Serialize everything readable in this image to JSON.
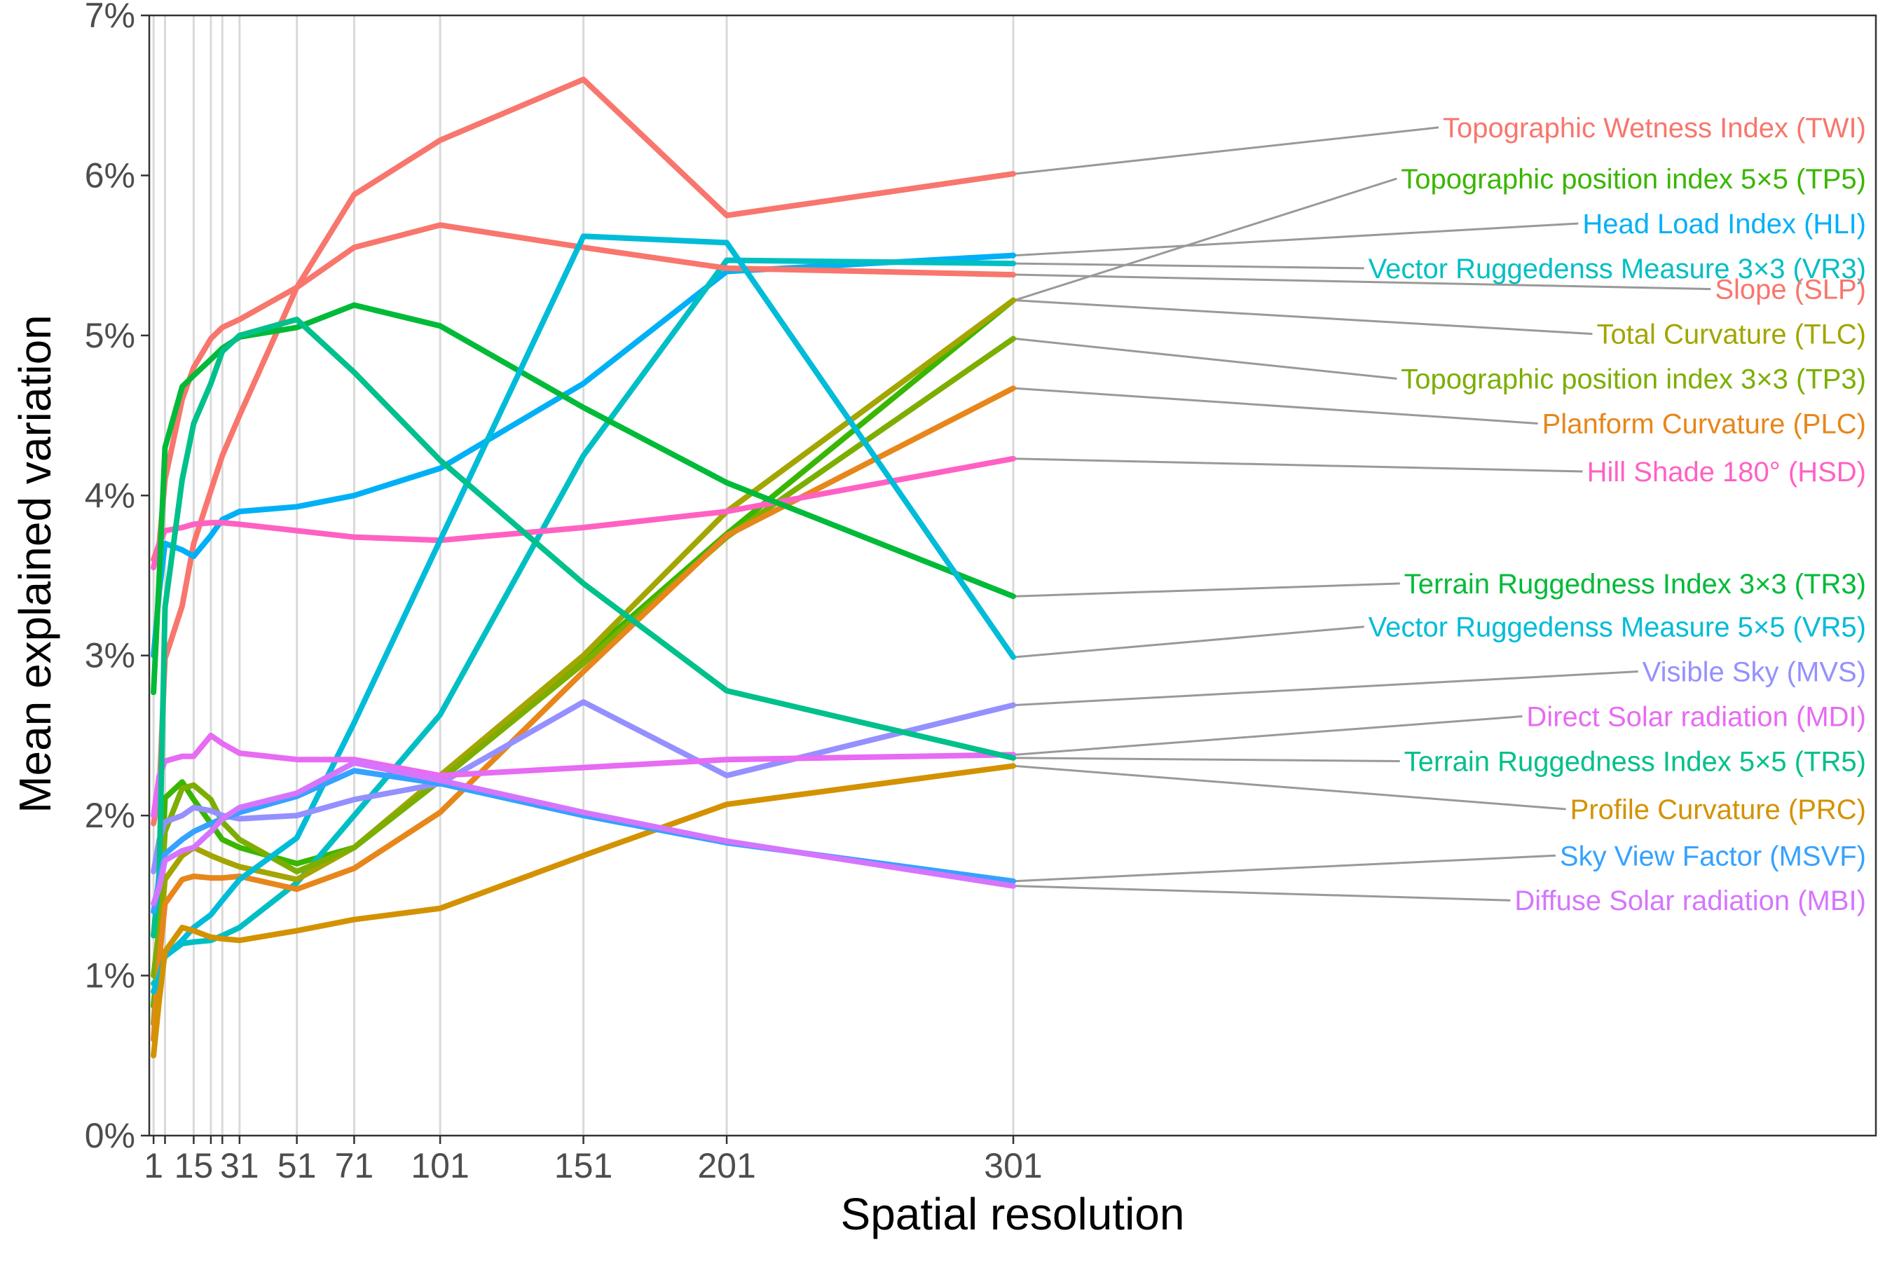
{
  "chart_data": {
    "type": "line",
    "title": "",
    "xlabel": "Spatial resolution",
    "ylabel": "Mean explained variation",
    "x": [
      1,
      3,
      5,
      11,
      15,
      21,
      25,
      31,
      51,
      71,
      101,
      151,
      201,
      301
    ],
    "x_ticks": [
      1,
      5,
      15,
      21,
      25,
      31,
      51,
      71,
      101,
      151,
      201,
      301
    ],
    "x_tick_labels": [
      {
        "value": 1,
        "label": "1"
      },
      {
        "value": 15,
        "label": "15"
      },
      {
        "value": 31,
        "label": "31"
      },
      {
        "value": 51,
        "label": "51"
      },
      {
        "value": 71,
        "label": "71"
      },
      {
        "value": 101,
        "label": "101"
      },
      {
        "value": 151,
        "label": "151"
      },
      {
        "value": 201,
        "label": "201"
      },
      {
        "value": 301,
        "label": "301"
      }
    ],
    "xlim": [
      -0.5,
      602
    ],
    "ylim": [
      0,
      0.07
    ],
    "y_ticks": [
      0,
      0.01,
      0.02,
      0.03,
      0.04,
      0.05,
      0.06,
      0.07
    ],
    "y_tick_labels": [
      "0%",
      "1%",
      "2%",
      "3%",
      "4%",
      "5%",
      "6%",
      "7%"
    ],
    "grid": "vertical at x ticks",
    "legend": "direct labels at right",
    "series": [
      {
        "name": "Topographic Wetness Index (TWI)",
        "color": "#F8766D",
        "label_y": 0.063,
        "values": [
          0.0195,
          0.0215,
          0.0298,
          0.0331,
          0.037,
          0.0403,
          0.0425,
          0.045,
          0.053,
          0.0588,
          0.0622,
          0.066,
          0.0575,
          0.0601
        ]
      },
      {
        "name": "Topographic position index 5×5 (TP5)",
        "color": "#39B600",
        "label_y": 0.0598,
        "values": [
          0.0081,
          0.012,
          0.0211,
          0.0221,
          0.021,
          0.0195,
          0.0185,
          0.018,
          0.017,
          0.018,
          0.0222,
          0.0298,
          0.0376,
          0.0522
        ]
      },
      {
        "name": "Head Load Index (HLI)",
        "color": "#00B0F6",
        "label_y": 0.057,
        "values": [
          0.03,
          0.034,
          0.037,
          0.0366,
          0.0362,
          0.0375,
          0.0385,
          0.039,
          0.0393,
          0.04,
          0.0417,
          0.047,
          0.054,
          0.055
        ]
      },
      {
        "name": "Vector Ruggedenss Measure 3×3 (VR3)",
        "color": "#00BFC4",
        "label_y": 0.0542,
        "values": [
          0.0095,
          0.01,
          0.0112,
          0.012,
          0.0121,
          0.0122,
          0.0125,
          0.013,
          0.0158,
          0.02,
          0.0263,
          0.0425,
          0.0547,
          0.0545
        ]
      },
      {
        "name": "Slope (SLP)",
        "color": "#F8766D",
        "label_y": 0.0529,
        "values": [
          0.036,
          0.037,
          0.041,
          0.046,
          0.048,
          0.0498,
          0.0505,
          0.051,
          0.053,
          0.0555,
          0.0569,
          0.0555,
          0.0542,
          0.0538
        ]
      },
      {
        "name": "Total Curvature (TLC)",
        "color": "#A3A500",
        "label_y": 0.0501,
        "values": [
          0.007,
          0.012,
          0.016,
          0.0175,
          0.018,
          0.0175,
          0.0172,
          0.0168,
          0.016,
          0.018,
          0.0225,
          0.03,
          0.039,
          0.0522
        ]
      },
      {
        "name": "Topographic position index 3×3 (TP3)",
        "color": "#7CAE00",
        "label_y": 0.0473,
        "values": [
          0.01,
          0.013,
          0.019,
          0.0217,
          0.0219,
          0.021,
          0.0196,
          0.0185,
          0.0165,
          0.018,
          0.0222,
          0.0295,
          0.0374,
          0.0498
        ]
      },
      {
        "name": "Planform Curvature (PLC)",
        "color": "#E7861A",
        "label_y": 0.0445,
        "values": [
          0.006,
          0.011,
          0.0145,
          0.016,
          0.0162,
          0.0161,
          0.0161,
          0.0162,
          0.0154,
          0.0167,
          0.0202,
          0.029,
          0.0375,
          0.0467
        ]
      },
      {
        "name": "Hill Shade 180° (HSD)",
        "color": "#FF61C3",
        "label_y": 0.0415,
        "values": [
          0.0355,
          0.037,
          0.0378,
          0.038,
          0.0382,
          0.0383,
          0.0383,
          0.0382,
          0.0378,
          0.0374,
          0.0372,
          0.038,
          0.039,
          0.0423
        ]
      },
      {
        "name": "Terrain Ruggedness Index 3×3 (TR3)",
        "color": "#00BA38",
        "label_y": 0.0345,
        "values": [
          0.0277,
          0.035,
          0.043,
          0.0468,
          0.0475,
          0.0485,
          0.0492,
          0.0499,
          0.0505,
          0.0519,
          0.0506,
          0.0455,
          0.0408,
          0.0337
        ]
      },
      {
        "name": "Vector Ruggedenss Measure 5×5 (VR5)",
        "color": "#00BCD8",
        "label_y": 0.0318,
        "values": [
          0.009,
          0.01,
          0.0112,
          0.0122,
          0.013,
          0.0138,
          0.0147,
          0.016,
          0.0186,
          0.0258,
          0.0372,
          0.0562,
          0.0558,
          0.0299
        ]
      },
      {
        "name": "Visible Sky (MVS)",
        "color": "#9590FF",
        "label_y": 0.029,
        "values": [
          0.0165,
          0.0185,
          0.0196,
          0.02,
          0.0205,
          0.0203,
          0.02,
          0.0198,
          0.02,
          0.021,
          0.022,
          0.0271,
          0.0225,
          0.0269
        ]
      },
      {
        "name": "Direct Solar radiation (MDI)",
        "color": "#E76BF3",
        "label_y": 0.0262,
        "values": [
          0.02,
          0.0225,
          0.0234,
          0.0237,
          0.0237,
          0.025,
          0.0245,
          0.0239,
          0.0235,
          0.0235,
          0.0225,
          0.023,
          0.0235,
          0.0238
        ]
      },
      {
        "name": "Terrain Ruggedness Index 5×5 (TR5)",
        "color": "#00C08B",
        "label_y": 0.0234,
        "values": [
          0.0125,
          0.0165,
          0.033,
          0.041,
          0.0445,
          0.047,
          0.049,
          0.05,
          0.051,
          0.0477,
          0.0422,
          0.0345,
          0.0278,
          0.0236
        ]
      },
      {
        "name": "Profile Curvature (PRC)",
        "color": "#D39200",
        "label_y": 0.0204,
        "values": [
          0.005,
          0.0085,
          0.0115,
          0.013,
          0.0128,
          0.0124,
          0.0123,
          0.0122,
          0.0128,
          0.0135,
          0.0142,
          0.0175,
          0.0207,
          0.0231
        ]
      },
      {
        "name": "Sky View Factor (MSVF)",
        "color": "#35A2FF",
        "label_y": 0.0175,
        "values": [
          0.014,
          0.016,
          0.0176,
          0.0185,
          0.019,
          0.0195,
          0.0198,
          0.0202,
          0.0212,
          0.0228,
          0.022,
          0.02,
          0.0183,
          0.0159
        ]
      },
      {
        "name": "Diffuse Solar radiation (MBI)",
        "color": "#D575FE",
        "label_y": 0.0147,
        "values": [
          0.0145,
          0.0155,
          0.0172,
          0.0178,
          0.018,
          0.019,
          0.0198,
          0.0205,
          0.0214,
          0.0233,
          0.0222,
          0.0202,
          0.0184,
          0.0156
        ]
      }
    ]
  }
}
